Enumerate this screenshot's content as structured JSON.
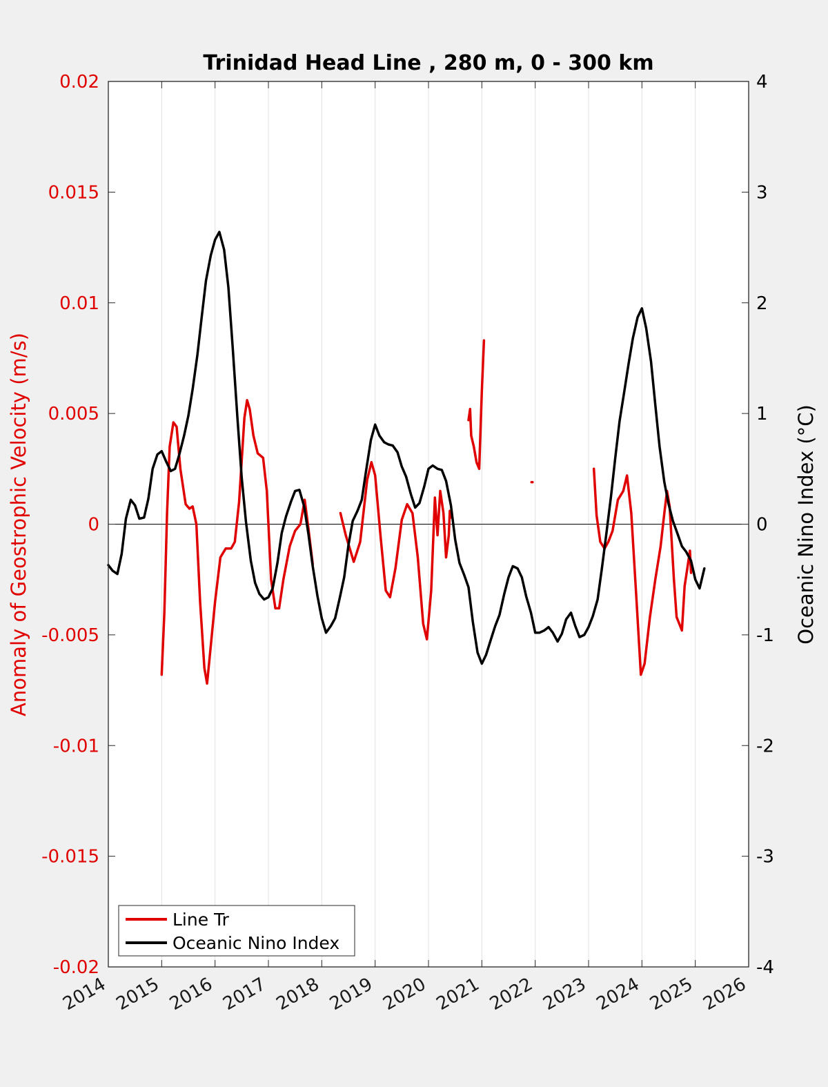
{
  "chart_data": {
    "type": "line",
    "title": "Trinidad Head Line , 280 m, 0 - 300 km",
    "xlabel": "",
    "ylabel_left": "Anomaly of Geostrophic Velocity (m/s)",
    "ylabel_right": "Oceanic Nino Index (°C)",
    "xlim": [
      2014,
      2026
    ],
    "ylim_left": [
      -0.02,
      0.02
    ],
    "ylim_right": [
      -4,
      4
    ],
    "x_ticks": [
      "2014",
      "2015",
      "2016",
      "2017",
      "2018",
      "2019",
      "2020",
      "2021",
      "2022",
      "2023",
      "2024",
      "2025",
      "2026"
    ],
    "y_ticks_left": [
      "0.02",
      "0.015",
      "0.01",
      "0.005",
      "0",
      "-0.005",
      "-0.01",
      "-0.015",
      "-0.02"
    ],
    "y_ticks_right": [
      "4",
      "3",
      "2",
      "1",
      "0",
      "-1",
      "-2",
      "-3",
      "-4"
    ],
    "grid": "vertical",
    "legend_position": "bottom-left",
    "colors": {
      "line_tr": "#e00000",
      "oni": "#000000",
      "axis_left": "#e00000",
      "axis_right": "#000000",
      "background": "#f0f0f0",
      "plot_bg": "#ffffff"
    },
    "series": [
      {
        "name": "Line Tr",
        "axis": "left",
        "segments": [
          [
            [
              2015.0,
              -0.0068
            ],
            [
              2015.05,
              -0.004
            ],
            [
              2015.1,
              0.0005
            ],
            [
              2015.15,
              0.0035
            ],
            [
              2015.22,
              0.0046
            ],
            [
              2015.28,
              0.0044
            ],
            [
              2015.35,
              0.0025
            ],
            [
              2015.45,
              0.0009
            ],
            [
              2015.52,
              0.0007
            ],
            [
              2015.58,
              0.0008
            ],
            [
              2015.65,
              0.0
            ],
            [
              2015.72,
              -0.0035
            ],
            [
              2015.8,
              -0.0065
            ],
            [
              2015.85,
              -0.0072
            ],
            [
              2015.9,
              -0.006
            ],
            [
              2016.0,
              -0.0035
            ],
            [
              2016.1,
              -0.0015
            ],
            [
              2016.2,
              -0.0011
            ],
            [
              2016.3,
              -0.0011
            ],
            [
              2016.37,
              -0.0008
            ],
            [
              2016.45,
              0.001
            ],
            [
              2016.55,
              0.0048
            ],
            [
              2016.6,
              0.0056
            ],
            [
              2016.65,
              0.0052
            ],
            [
              2016.72,
              0.004
            ],
            [
              2016.8,
              0.0032
            ],
            [
              2016.9,
              0.003
            ],
            [
              2016.97,
              0.0015
            ],
            [
              2017.05,
              -0.0025
            ],
            [
              2017.13,
              -0.0038
            ],
            [
              2017.2,
              -0.0038
            ],
            [
              2017.28,
              -0.0025
            ],
            [
              2017.4,
              -0.001
            ],
            [
              2017.5,
              -0.0003
            ],
            [
              2017.6,
              0.0
            ],
            [
              2017.68,
              0.0011
            ],
            [
              2017.75,
              -0.0002
            ],
            [
              2017.83,
              -0.0018
            ]
          ],
          [
            [
              2018.35,
              0.0005
            ],
            [
              2018.45,
              -0.0005
            ],
            [
              2018.6,
              -0.0017
            ],
            [
              2018.72,
              -0.0008
            ],
            [
              2018.85,
              0.002
            ],
            [
              2018.93,
              0.0028
            ],
            [
              2019.0,
              0.0022
            ],
            [
              2019.1,
              -0.0005
            ],
            [
              2019.2,
              -0.003
            ],
            [
              2019.28,
              -0.0033
            ],
            [
              2019.38,
              -0.002
            ],
            [
              2019.5,
              0.0002
            ],
            [
              2019.6,
              0.0009
            ],
            [
              2019.7,
              0.0005
            ],
            [
              2019.8,
              -0.0015
            ],
            [
              2019.9,
              -0.0045
            ],
            [
              2019.97,
              -0.0052
            ],
            [
              2020.05,
              -0.003
            ],
            [
              2020.12,
              0.0012
            ],
            [
              2020.17,
              -0.0005
            ],
            [
              2020.22,
              0.0015
            ],
            [
              2020.28,
              0.0005
            ],
            [
              2020.33,
              -0.0015
            ],
            [
              2020.38,
              -0.0005
            ],
            [
              2020.4,
              0.0006
            ],
            [
              2020.43,
              0.0003
            ]
          ],
          [
            [
              2020.75,
              0.0047
            ],
            [
              2020.78,
              0.0052
            ],
            [
              2020.8,
              0.004
            ],
            [
              2020.85,
              0.0035
            ],
            [
              2020.9,
              0.0028
            ],
            [
              2020.95,
              0.0025
            ],
            [
              2021.0,
              0.006
            ],
            [
              2021.04,
              0.0083
            ]
          ],
          [
            [
              2021.93,
              0.0019
            ],
            [
              2021.95,
              0.0019
            ]
          ],
          [
            [
              2023.1,
              0.0025
            ],
            [
              2023.15,
              0.0004
            ],
            [
              2023.22,
              -0.0008
            ],
            [
              2023.3,
              -0.0011
            ],
            [
              2023.37,
              -0.0008
            ],
            [
              2023.45,
              -0.0003
            ],
            [
              2023.55,
              0.0011
            ],
            [
              2023.65,
              0.0015
            ],
            [
              2023.72,
              0.0022
            ],
            [
              2023.8,
              0.0005
            ],
            [
              2023.9,
              -0.0035
            ],
            [
              2023.98,
              -0.0068
            ],
            [
              2024.05,
              -0.0063
            ],
            [
              2024.15,
              -0.0042
            ],
            [
              2024.25,
              -0.0025
            ],
            [
              2024.35,
              -0.001
            ],
            [
              2024.42,
              0.0005
            ],
            [
              2024.47,
              0.0015
            ],
            [
              2024.52,
              0.0008
            ],
            [
              2024.6,
              -0.0025
            ],
            [
              2024.65,
              -0.0042
            ],
            [
              2024.7,
              -0.0045
            ],
            [
              2024.75,
              -0.0048
            ],
            [
              2024.8,
              -0.0028
            ],
            [
              2024.85,
              -0.002
            ],
            [
              2024.9,
              -0.0012
            ],
            [
              2024.92,
              -0.0022
            ]
          ]
        ]
      },
      {
        "name": "Oceanic Nino Index",
        "axis": "right",
        "segments": [
          [
            [
              2014.0,
              -0.37
            ],
            [
              2014.08,
              -0.42
            ],
            [
              2014.17,
              -0.45
            ],
            [
              2014.25,
              -0.27
            ],
            [
              2014.33,
              0.05
            ],
            [
              2014.42,
              0.22
            ],
            [
              2014.5,
              0.17
            ],
            [
              2014.58,
              0.05
            ],
            [
              2014.67,
              0.06
            ],
            [
              2014.75,
              0.23
            ],
            [
              2014.83,
              0.5
            ],
            [
              2014.92,
              0.63
            ],
            [
              2015.0,
              0.66
            ],
            [
              2015.08,
              0.57
            ],
            [
              2015.17,
              0.48
            ],
            [
              2015.25,
              0.5
            ],
            [
              2015.33,
              0.63
            ],
            [
              2015.42,
              0.8
            ],
            [
              2015.5,
              0.98
            ],
            [
              2015.58,
              1.22
            ],
            [
              2015.67,
              1.53
            ],
            [
              2015.75,
              1.87
            ],
            [
              2015.83,
              2.2
            ],
            [
              2015.92,
              2.43
            ],
            [
              2016.0,
              2.57
            ],
            [
              2016.08,
              2.64
            ],
            [
              2016.17,
              2.48
            ],
            [
              2016.25,
              2.14
            ],
            [
              2016.33,
              1.6
            ],
            [
              2016.42,
              0.96
            ],
            [
              2016.5,
              0.42
            ],
            [
              2016.58,
              0.02
            ],
            [
              2016.67,
              -0.33
            ],
            [
              2016.75,
              -0.53
            ],
            [
              2016.83,
              -0.63
            ],
            [
              2016.92,
              -0.68
            ],
            [
              2017.0,
              -0.66
            ],
            [
              2017.08,
              -0.58
            ],
            [
              2017.17,
              -0.35
            ],
            [
              2017.25,
              -0.08
            ],
            [
              2017.33,
              0.07
            ],
            [
              2017.42,
              0.2
            ],
            [
              2017.5,
              0.3
            ],
            [
              2017.58,
              0.31
            ],
            [
              2017.67,
              0.16
            ],
            [
              2017.75,
              -0.09
            ],
            [
              2017.83,
              -0.38
            ],
            [
              2017.92,
              -0.65
            ],
            [
              2018.0,
              -0.85
            ],
            [
              2018.08,
              -0.98
            ],
            [
              2018.17,
              -0.92
            ],
            [
              2018.25,
              -0.85
            ],
            [
              2018.33,
              -0.68
            ],
            [
              2018.42,
              -0.48
            ],
            [
              2018.5,
              -0.19
            ],
            [
              2018.58,
              0.03
            ],
            [
              2018.67,
              0.12
            ],
            [
              2018.75,
              0.22
            ],
            [
              2018.83,
              0.48
            ],
            [
              2018.92,
              0.76
            ],
            [
              2019.0,
              0.9
            ],
            [
              2019.08,
              0.8
            ],
            [
              2019.17,
              0.74
            ],
            [
              2019.25,
              0.72
            ],
            [
              2019.33,
              0.71
            ],
            [
              2019.42,
              0.65
            ],
            [
              2019.5,
              0.52
            ],
            [
              2019.58,
              0.43
            ],
            [
              2019.67,
              0.27
            ],
            [
              2019.75,
              0.15
            ],
            [
              2019.83,
              0.19
            ],
            [
              2019.92,
              0.34
            ],
            [
              2020.0,
              0.5
            ],
            [
              2020.08,
              0.53
            ],
            [
              2020.17,
              0.5
            ],
            [
              2020.25,
              0.49
            ],
            [
              2020.33,
              0.39
            ],
            [
              2020.42,
              0.17
            ],
            [
              2020.5,
              -0.14
            ],
            [
              2020.58,
              -0.35
            ],
            [
              2020.67,
              -0.46
            ],
            [
              2020.75,
              -0.57
            ],
            [
              2020.83,
              -0.88
            ],
            [
              2020.92,
              -1.16
            ],
            [
              2021.0,
              -1.26
            ],
            [
              2021.08,
              -1.18
            ],
            [
              2021.17,
              -1.04
            ],
            [
              2021.25,
              -0.92
            ],
            [
              2021.33,
              -0.82
            ],
            [
              2021.42,
              -0.63
            ],
            [
              2021.5,
              -0.48
            ],
            [
              2021.58,
              -0.38
            ],
            [
              2021.67,
              -0.4
            ],
            [
              2021.75,
              -0.48
            ],
            [
              2021.83,
              -0.65
            ],
            [
              2021.92,
              -0.8
            ],
            [
              2022.0,
              -0.98
            ],
            [
              2022.08,
              -0.98
            ],
            [
              2022.17,
              -0.96
            ],
            [
              2022.25,
              -0.93
            ],
            [
              2022.33,
              -0.98
            ],
            [
              2022.42,
              -1.06
            ],
            [
              2022.5,
              -0.99
            ],
            [
              2022.58,
              -0.86
            ],
            [
              2022.67,
              -0.8
            ],
            [
              2022.75,
              -0.92
            ],
            [
              2022.83,
              -1.02
            ],
            [
              2022.92,
              -1.0
            ],
            [
              2023.0,
              -0.93
            ],
            [
              2023.08,
              -0.83
            ],
            [
              2023.17,
              -0.68
            ],
            [
              2023.25,
              -0.4
            ],
            [
              2023.33,
              -0.1
            ],
            [
              2023.42,
              0.25
            ],
            [
              2023.5,
              0.6
            ],
            [
              2023.58,
              0.93
            ],
            [
              2023.67,
              1.2
            ],
            [
              2023.75,
              1.45
            ],
            [
              2023.83,
              1.68
            ],
            [
              2023.92,
              1.87
            ],
            [
              2024.0,
              1.95
            ],
            [
              2024.08,
              1.77
            ],
            [
              2024.17,
              1.47
            ],
            [
              2024.25,
              1.08
            ],
            [
              2024.33,
              0.7
            ],
            [
              2024.42,
              0.38
            ],
            [
              2024.5,
              0.18
            ],
            [
              2024.58,
              0.03
            ],
            [
              2024.67,
              -0.09
            ],
            [
              2024.75,
              -0.2
            ],
            [
              2024.83,
              -0.25
            ],
            [
              2024.92,
              -0.33
            ],
            [
              2025.0,
              -0.5
            ],
            [
              2025.08,
              -0.58
            ],
            [
              2025.17,
              -0.4
            ]
          ]
        ]
      }
    ]
  }
}
